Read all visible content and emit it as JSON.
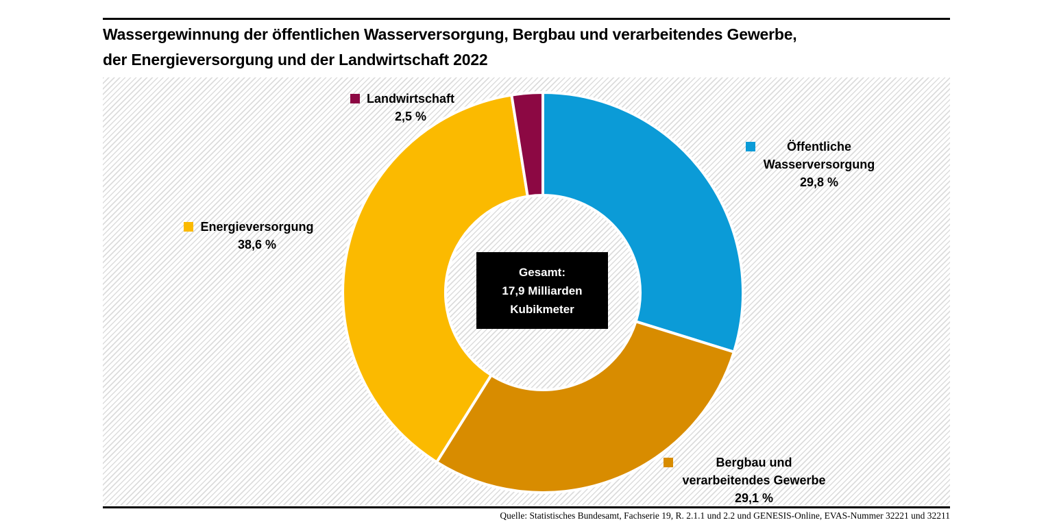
{
  "header": {
    "title_line1": "Wassergewinnung der öffentlichen Wasserversorgung, Bergbau und verarbeitendes Gewerbe,",
    "title_line2": "der Energieversorgung und der Landwirtschaft 2022"
  },
  "footer": {
    "source": "Quelle: Statistisches Bundesamt, Fachserie 19, R. 2.1.1 und 2.2 und GENESIS-Online, EVAS-Nummer 32221 und 32211"
  },
  "chart_data": {
    "type": "pie",
    "subtype": "donut",
    "title": "Wassergewinnung der öffentlichen Wasserversorgung, Bergbau und verarbeitendes Gewerbe, der Energieversorgung und der Landwirtschaft 2022",
    "unit": "%",
    "direction": "clockwise",
    "start_angle_deg": 0,
    "legend_position": "around",
    "center_label": {
      "line1": "Gesamt:",
      "line2": "17,9 Milliarden",
      "line3": "Kubikmeter"
    },
    "total": "17,9 Milliarden Kubikmeter",
    "segments": [
      {
        "label": "Öffentliche Wasserversorgung",
        "label_lines": [
          "Öffentliche",
          "Wasserversorgung"
        ],
        "value": 29.8,
        "pct_label": "29,8 %",
        "color": "#0B9BD7"
      },
      {
        "label": "Bergbau und verarbeitendes Gewerbe",
        "label_lines": [
          "Bergbau und",
          "verarbeitendes Gewerbe"
        ],
        "value": 29.1,
        "pct_label": "29,1 %",
        "color": "#D88C00"
      },
      {
        "label": "Energieversorgung",
        "label_lines": [
          "Energieversorgung"
        ],
        "value": 38.6,
        "pct_label": "38,6 %",
        "color": "#FBBA00"
      },
      {
        "label": "Landwirtschaft",
        "label_lines": [
          "Landwirtschaft"
        ],
        "value": 2.5,
        "pct_label": "2,5 %",
        "color": "#8C0843"
      }
    ]
  }
}
